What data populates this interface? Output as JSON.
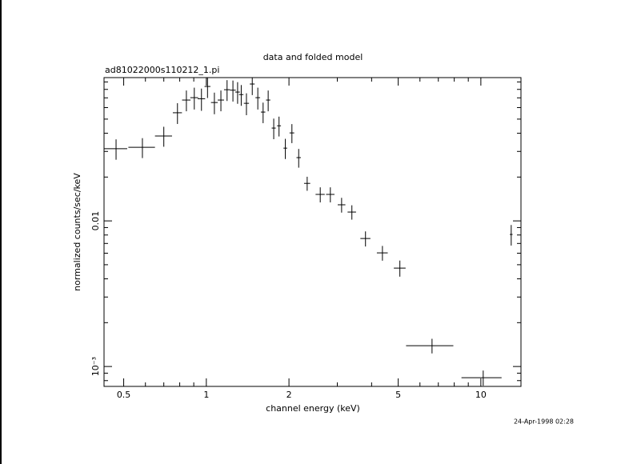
{
  "chart_data": {
    "type": "errorbar-scatter",
    "title": "data and folded model",
    "subtitle": "ad81022000s110212_1.pi",
    "x_label": "channel energy (keV)",
    "y_label": "normalized counts/sec/keV",
    "timestamp": "24-Apr-1998 02:28",
    "xscale": "log",
    "yscale": "log",
    "xlim": [
      0.424,
      14
    ],
    "ylim": [
      0.00073,
      0.0964
    ],
    "xticks": [
      0.5,
      1,
      2,
      5,
      10
    ],
    "xminorticks": [
      0.6,
      0.7,
      0.8,
      0.9,
      3,
      4,
      6,
      7,
      8,
      9
    ],
    "yticks": [
      {
        "value": 0.01,
        "label": "0.01"
      },
      {
        "value": 0.001,
        "label": "10⁻³"
      }
    ],
    "yminorticks": [
      0.0008,
      0.0009,
      0.002,
      0.003,
      0.004,
      0.005,
      0.006,
      0.007,
      0.008,
      0.009,
      0.02,
      0.03,
      0.04,
      0.05,
      0.06,
      0.07,
      0.08,
      0.09
    ],
    "color": "#000000",
    "x": [
      0.469,
      0.585,
      0.7,
      0.785,
      0.846,
      0.904,
      0.96,
      1.01,
      1.07,
      1.13,
      1.19,
      1.25,
      1.3,
      1.34,
      1.4,
      1.47,
      1.54,
      1.61,
      1.68,
      1.76,
      1.84,
      1.94,
      2.05,
      2.17,
      2.33,
      2.6,
      2.83,
      3.11,
      3.39,
      3.8,
      4.38,
      5.07,
      6.64,
      10.2,
      12.9
    ],
    "xerr": [
      0.046,
      0.065,
      0.05,
      0.03,
      0.03,
      0.03,
      0.03,
      0.025,
      0.03,
      0.03,
      0.03,
      0.03,
      0.025,
      0.025,
      0.03,
      0.03,
      0.03,
      0.03,
      0.03,
      0.03,
      0.03,
      0.03,
      0.04,
      0.04,
      0.06,
      0.1,
      0.1,
      0.1,
      0.12,
      0.16,
      0.2,
      0.25,
      1.3,
      1.7,
      0.15
    ],
    "values": [
      0.0313,
      0.032,
      0.0383,
      0.0553,
      0.0676,
      0.0702,
      0.069,
      0.0838,
      0.065,
      0.0676,
      0.0796,
      0.079,
      0.0767,
      0.0737,
      0.0642,
      0.0871,
      0.0702,
      0.0559,
      0.0676,
      0.0434,
      0.045,
      0.0316,
      0.0402,
      0.0272,
      0.0181,
      0.0152,
      0.0152,
      0.0129,
      0.0115,
      0.00757,
      0.00603,
      0.00474,
      0.00139,
      0.000838,
      0.00807
    ],
    "yerr": [
      0.005,
      0.005,
      0.006,
      0.009,
      0.011,
      0.012,
      0.012,
      0.014,
      0.011,
      0.011,
      0.013,
      0.013,
      0.013,
      0.012,
      0.011,
      0.014,
      0.012,
      0.009,
      0.011,
      0.007,
      0.007,
      0.005,
      0.006,
      0.004,
      0.002,
      0.0018,
      0.0018,
      0.0015,
      0.0013,
      0.0009,
      0.0007,
      0.0006,
      0.00016,
      0.0001,
      0.0013
    ]
  }
}
